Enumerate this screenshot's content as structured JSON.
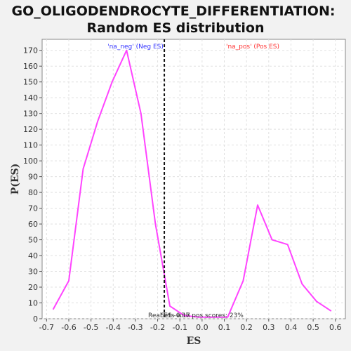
{
  "colors": {
    "background": "#f2f2f2",
    "plot_bg": "#ffffff",
    "series": "#ff44ff",
    "neg_label": "#3333ff",
    "pos_label": "#ff3333",
    "grid": "#e0e0e0",
    "threshold_line": "#111111"
  },
  "chart_data": {
    "type": "line",
    "title": [
      "GO_OLIGODENDROCYTE_DIFFERENTIATION:",
      "Random ES distribution"
    ],
    "xlabel": "ES",
    "ylabel": "P(ES)",
    "xlim": [
      -0.72,
      0.645
    ],
    "ylim": [
      0,
      177
    ],
    "grid": true,
    "x_ticks": [
      -0.7,
      -0.6,
      -0.5,
      -0.4,
      -0.3,
      -0.2,
      -0.1,
      0.0,
      0.1,
      0.2,
      0.3,
      0.4,
      0.5,
      0.6
    ],
    "y_ticks": [
      0,
      10,
      20,
      30,
      40,
      50,
      60,
      70,
      80,
      90,
      100,
      110,
      120,
      130,
      140,
      150,
      160,
      170
    ],
    "series": [
      {
        "x": [
          -0.67,
          -0.6,
          -0.535,
          -0.47,
          -0.405,
          -0.34,
          -0.275,
          -0.21,
          -0.145,
          -0.08,
          -0.015,
          0.05,
          0.115,
          0.185,
          0.25,
          0.315,
          0.385,
          0.45,
          0.515,
          0.58
        ],
        "y": [
          6,
          24,
          95,
          125,
          150,
          170,
          130,
          60,
          8,
          2,
          1,
          1,
          1,
          24,
          72,
          50,
          47,
          22,
          11,
          5
        ]
      }
    ],
    "threshold": {
      "x": -0.17
    },
    "annotations": {
      "neg_region": "'na_neg' (Neg ES)",
      "pos_region": "'na_pos' (Pos ES)",
      "real_es": "Real ES -0.17",
      "pos_scores": "Sets with pos scores: 23%"
    }
  }
}
